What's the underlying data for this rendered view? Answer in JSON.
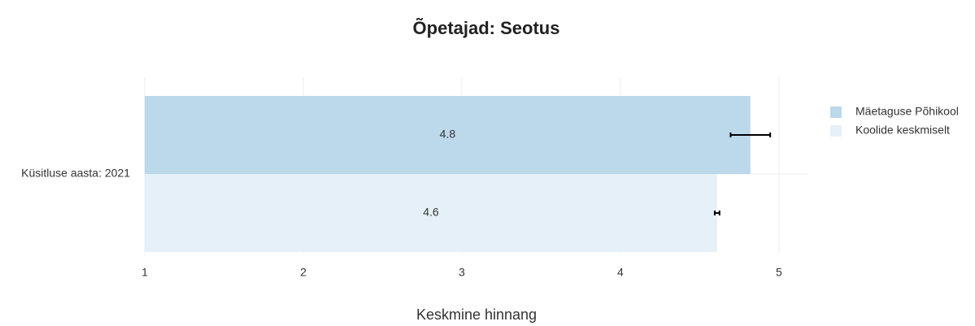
{
  "chart_data": {
    "type": "bar",
    "orientation": "horizontal",
    "title": "Õpetajad: Seotus",
    "x_label": "Keskmine hinnang",
    "categories": [
      "Küsitluse aasta: 2021"
    ],
    "series": [
      {
        "name": "Mäetaguse Põhikool",
        "color": "#bcd8eb",
        "values": [
          4.82
        ],
        "value_labels": [
          "4.8"
        ],
        "errors": [
          0.125
        ]
      },
      {
        "name": "Koolide keskmiselt",
        "color": "#e5f0f9",
        "values": [
          4.61
        ],
        "value_labels": [
          "4.6"
        ],
        "errors": [
          0.015
        ]
      }
    ],
    "xlim": [
      1,
      5.18
    ],
    "xticks": [
      1,
      2,
      3,
      4,
      5
    ],
    "grid": true,
    "legend": "top-right"
  }
}
